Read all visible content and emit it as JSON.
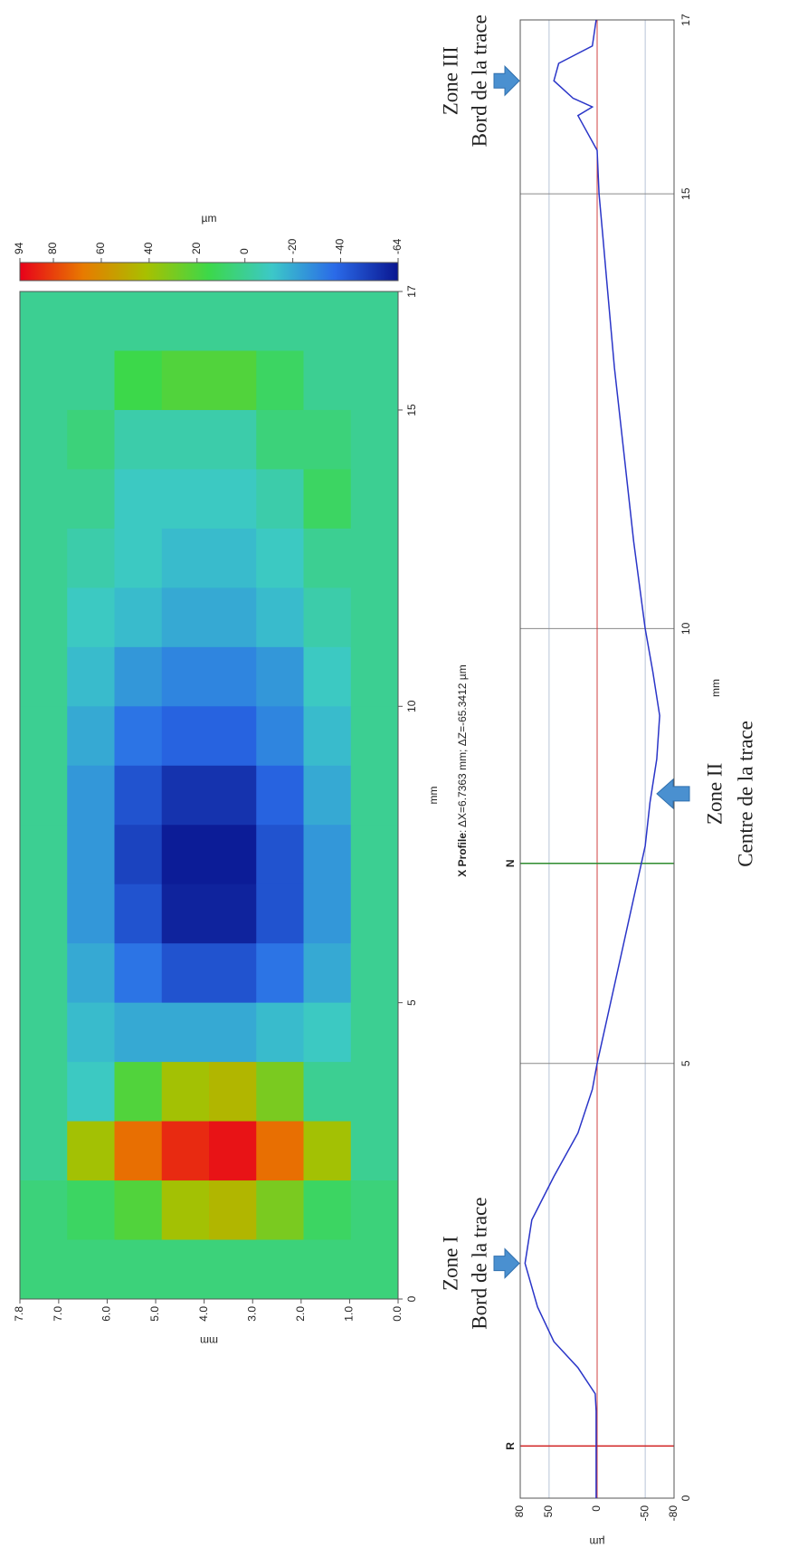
{
  "chart_data": [
    {
      "type": "heatmap",
      "xlabel": "mm",
      "ylabel": "mm",
      "zlabel": "µm",
      "xlim": [
        0,
        17
      ],
      "ylim": [
        0,
        7.8
      ],
      "xticks": [
        0,
        5,
        10,
        15,
        17
      ],
      "yticks": [
        {
          "value": 0,
          "label": "0.0"
        },
        {
          "value": 1,
          "label": "1.0"
        },
        {
          "value": 2,
          "label": "2.0"
        },
        {
          "value": 3,
          "label": "3.0"
        },
        {
          "value": 4,
          "label": "4.0"
        },
        {
          "value": 5,
          "label": "5.0"
        },
        {
          "value": 6,
          "label": "6.0"
        },
        {
          "value": 7,
          "label": "7.0"
        },
        7.8
      ],
      "zlim": [
        -64,
        94
      ],
      "zticks": [
        94,
        80,
        60,
        40,
        20,
        0,
        -20,
        -40,
        -64
      ],
      "colorscale": [
        "#e8001a",
        "#e87a00",
        "#a8c000",
        "#3cd84a",
        "#3cc8c8",
        "#2a6ae8",
        "#0a1690"
      ],
      "z": [
        [
          5,
          5,
          0,
          0,
          0,
          0,
          0,
          0,
          0,
          0,
          0,
          0,
          0,
          0,
          0,
          0,
          0
        ],
        [
          5,
          10,
          40,
          -10,
          -15,
          -20,
          -25,
          -25,
          -25,
          -20,
          -15,
          -10,
          -5,
          0,
          5,
          0,
          0
        ],
        [
          5,
          20,
          70,
          20,
          -20,
          -35,
          -45,
          -50,
          -45,
          -35,
          -25,
          -15,
          -10,
          -10,
          -5,
          15,
          0
        ],
        [
          5,
          40,
          85,
          40,
          -20,
          -45,
          -60,
          -62,
          -55,
          -40,
          -30,
          -20,
          -15,
          -10,
          -5,
          20,
          0
        ],
        [
          5,
          45,
          90,
          45,
          -20,
          -45,
          -60,
          -62,
          -55,
          -40,
          -30,
          -20,
          -15,
          -10,
          -5,
          20,
          0
        ],
        [
          5,
          30,
          70,
          30,
          -15,
          -35,
          -45,
          -45,
          -40,
          -30,
          -25,
          -15,
          -10,
          -5,
          5,
          10,
          0
        ],
        [
          5,
          10,
          40,
          0,
          -10,
          -20,
          -25,
          -25,
          -20,
          -15,
          -10,
          -5,
          0,
          10,
          5,
          0,
          0
        ],
        [
          5,
          5,
          0,
          0,
          0,
          0,
          0,
          0,
          0,
          0,
          0,
          0,
          0,
          0,
          0,
          0,
          0
        ]
      ]
    },
    {
      "type": "line",
      "title": "X Profile",
      "subtitle": ": ΔX=6.7363 mm; ΔZ=-65.3412 µm",
      "xlabel": "mm",
      "ylabel": "µm",
      "xlim": [
        0,
        17
      ],
      "ylim": [
        -80,
        80
      ],
      "xticks": [
        0,
        5,
        10,
        15,
        17
      ],
      "yticks": [
        80,
        50,
        0,
        -50,
        -80
      ],
      "color": "#2a35c8",
      "x": [
        0,
        0.5,
        1,
        1.2,
        1.5,
        1.8,
        2.2,
        2.7,
        3.2,
        3.7,
        4.2,
        4.7,
        5,
        6,
        7,
        7.5,
        8,
        8.5,
        9,
        9.5,
        10,
        11,
        12,
        13,
        14,
        14.5,
        15,
        15.5,
        15.8,
        15.9,
        16,
        16.1,
        16.3,
        16.5,
        16.7,
        17
      ],
      "values": [
        1,
        1,
        1,
        2,
        20,
        45,
        62,
        75,
        68,
        45,
        20,
        5,
        0,
        -20,
        -40,
        -50,
        -55,
        -62,
        -65,
        -58,
        -50,
        -38,
        -28,
        -18,
        -10,
        -6,
        -2,
        0,
        15,
        20,
        5,
        25,
        45,
        40,
        5,
        1
      ],
      "reference_line": {
        "value": 0,
        "color": "#d04040"
      },
      "markers": [
        {
          "label": "R",
          "x": 0.6,
          "color": "#d02020"
        },
        {
          "label": "N",
          "x": 7.3,
          "color": "#2e8b2e"
        }
      ],
      "annotations": [
        {
          "lines": [
            "Zone I",
            "Bord de la trace"
          ],
          "x": 2.7,
          "side": "above"
        },
        {
          "lines": [
            "Zone II",
            "Centre de la trace"
          ],
          "x": 8.1,
          "side": "below"
        },
        {
          "lines": [
            "Zone III",
            "Bord de la trace"
          ],
          "x": 16.3,
          "side": "above"
        }
      ]
    }
  ]
}
